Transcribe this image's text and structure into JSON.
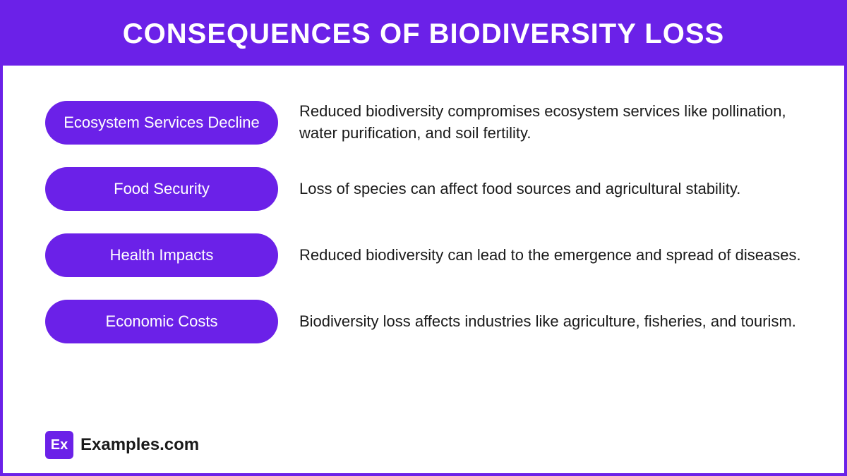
{
  "title": "CONSEQUENCES OF BIODIVERSITY LOSS",
  "colors": {
    "primary": "#6b21e8",
    "text": "#1a1a1a",
    "background": "#ffffff",
    "pill_text": "#ffffff"
  },
  "typography": {
    "title_fontsize": 40,
    "title_weight": 800,
    "pill_fontsize": 22,
    "description_fontsize": 22,
    "brand_fontsize": 24
  },
  "items": [
    {
      "label": "Ecosystem Services Decline",
      "description": "Reduced biodiversity compromises ecosystem services like pollination, water purification, and soil fertility."
    },
    {
      "label": "Food Security",
      "description": "Loss of species can affect food sources and agricultural stability."
    },
    {
      "label": "Health Impacts",
      "description": "Reduced biodiversity can lead to the emergence and spread of diseases."
    },
    {
      "label": "Economic Costs",
      "description": "Biodiversity loss affects industries like agriculture, fisheries, and tourism."
    }
  ],
  "brand": {
    "logo_text": "Ex",
    "name": "Examples.com"
  }
}
